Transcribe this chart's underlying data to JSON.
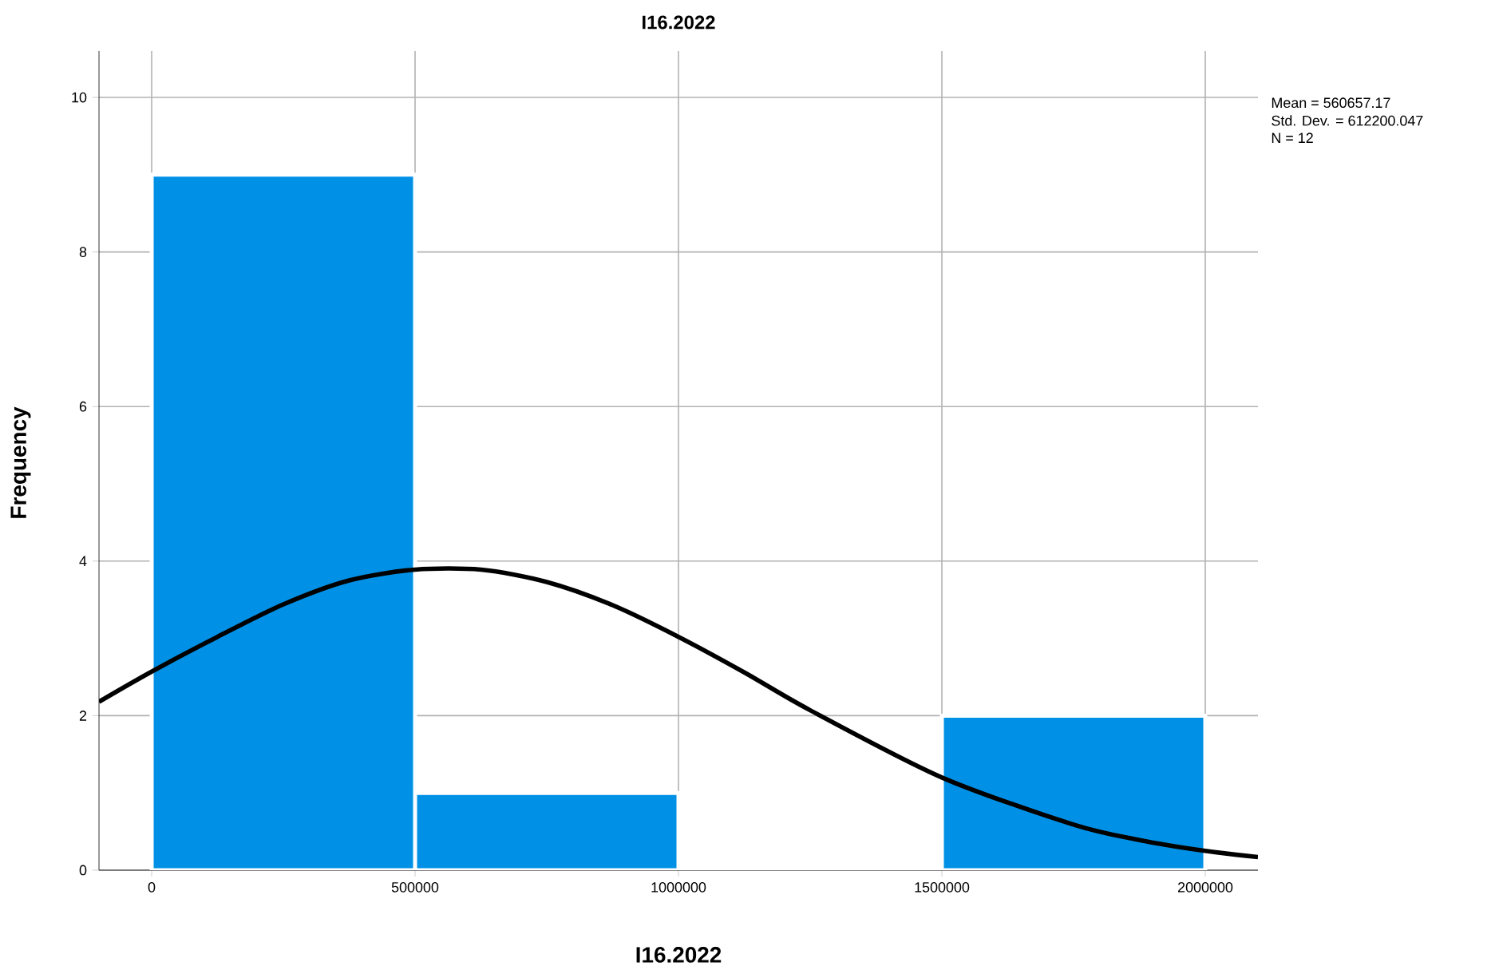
{
  "chart_data": {
    "type": "histogram",
    "title": "I16.2022",
    "xlabel": "I16.2022",
    "ylabel": "Frequency",
    "annotations": [
      "Mean = 560657.17",
      "Std. Dev. = 612200.047",
      "N = 12"
    ],
    "series": [
      {
        "bins": [
          0,
          500000,
          1000000,
          1500000,
          2000000
        ],
        "values": [
          9,
          1,
          0,
          2
        ],
        "color": "#0091e6"
      },
      {
        "type": "line",
        "color": "#000000",
        "x": [
          -100000,
          0,
          125000,
          250000,
          375000,
          500000,
          625000,
          750000,
          875000,
          1000000,
          1125000,
          1250000,
          1500000,
          1750000,
          1875000,
          2000000,
          2100000
        ],
        "values": [
          2.18,
          2.57,
          3.02,
          3.44,
          3.75,
          3.89,
          3.89,
          3.73,
          3.43,
          3.02,
          2.56,
          2.07,
          1.2,
          0.59,
          0.39,
          0.25,
          0.17
        ]
      }
    ],
    "xlim": [
      -100000,
      2100000
    ],
    "ylim": [
      0,
      10.6
    ],
    "xticks": [
      0,
      500000,
      1000000,
      1500000,
      2000000
    ],
    "yticks": [
      0,
      2,
      4,
      6,
      8,
      10
    ],
    "grid": true
  }
}
